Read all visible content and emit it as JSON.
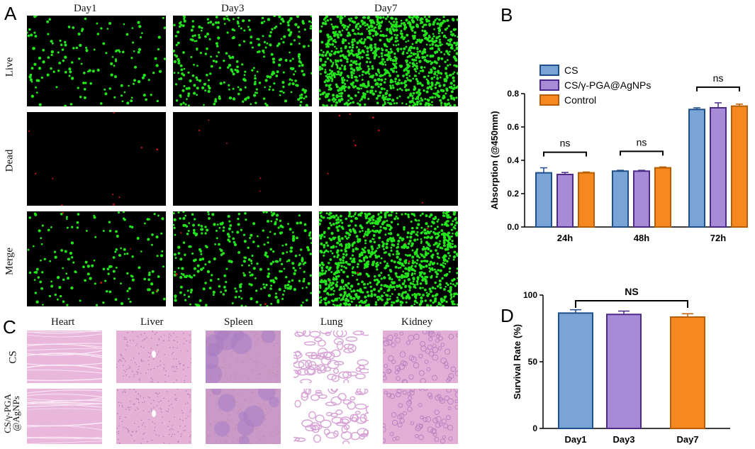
{
  "panel_a": {
    "letter": "A",
    "columns": [
      "Day1",
      "Day3",
      "Day7"
    ],
    "rows": [
      "Live",
      "Dead",
      "Merge"
    ]
  },
  "panel_c": {
    "letter": "C",
    "columns": [
      "Heart",
      "Liver",
      "Spleen",
      "Lung",
      "Kidney"
    ],
    "rows": [
      "CS",
      "CS/γ-PGA",
      "@AgNPs"
    ]
  },
  "colors": {
    "CS": "#7aa3d6",
    "CS_stroke": "#1f4e8c",
    "CSPGA": "#a78bd6",
    "CSPGA_stroke": "#4b2a8a",
    "Control": "#f5891f",
    "Control_stroke": "#b85e00",
    "live_green": "#22e61a",
    "dead_red": "#c21414",
    "he_pink": "#e7b8db"
  },
  "chart_data": [
    {
      "panel": "B",
      "type": "bar",
      "title": "",
      "ylabel": "Absorption  (@450mm)",
      "xlabel": "",
      "categories": [
        "24h",
        "48h",
        "72h"
      ],
      "ylim": [
        0,
        0.8
      ],
      "yticks": [
        "0.0",
        "0.2",
        "0.4",
        "0.6",
        "0.8"
      ],
      "legend_placement": "top-left",
      "series": [
        {
          "name": "CS",
          "values": [
            0.325,
            0.335,
            0.705
          ],
          "errors": [
            0.03,
            0.005,
            0.01
          ]
        },
        {
          "name": "CS/γ-PGA@AgNPs",
          "values": [
            0.315,
            0.335,
            0.715
          ],
          "errors": [
            0.012,
            0.005,
            0.03
          ]
        },
        {
          "name": "Control",
          "values": [
            0.325,
            0.355,
            0.725
          ],
          "errors": [
            0.005,
            0.005,
            0.012
          ]
        }
      ],
      "annotations": [
        "ns",
        "ns",
        "ns"
      ]
    },
    {
      "panel": "D",
      "type": "bar",
      "title": "",
      "ylabel": "Survival Rate  (%)",
      "xlabel": "",
      "categories": [
        "Day1",
        "Day3",
        "Day7"
      ],
      "ylim": [
        0,
        100
      ],
      "yticks": [
        "0",
        "50",
        "100"
      ],
      "values": [
        86.5,
        85.5,
        83.5
      ],
      "errors": [
        2.5,
        2.5,
        2.5
      ],
      "annotations": [
        "NS"
      ]
    }
  ]
}
